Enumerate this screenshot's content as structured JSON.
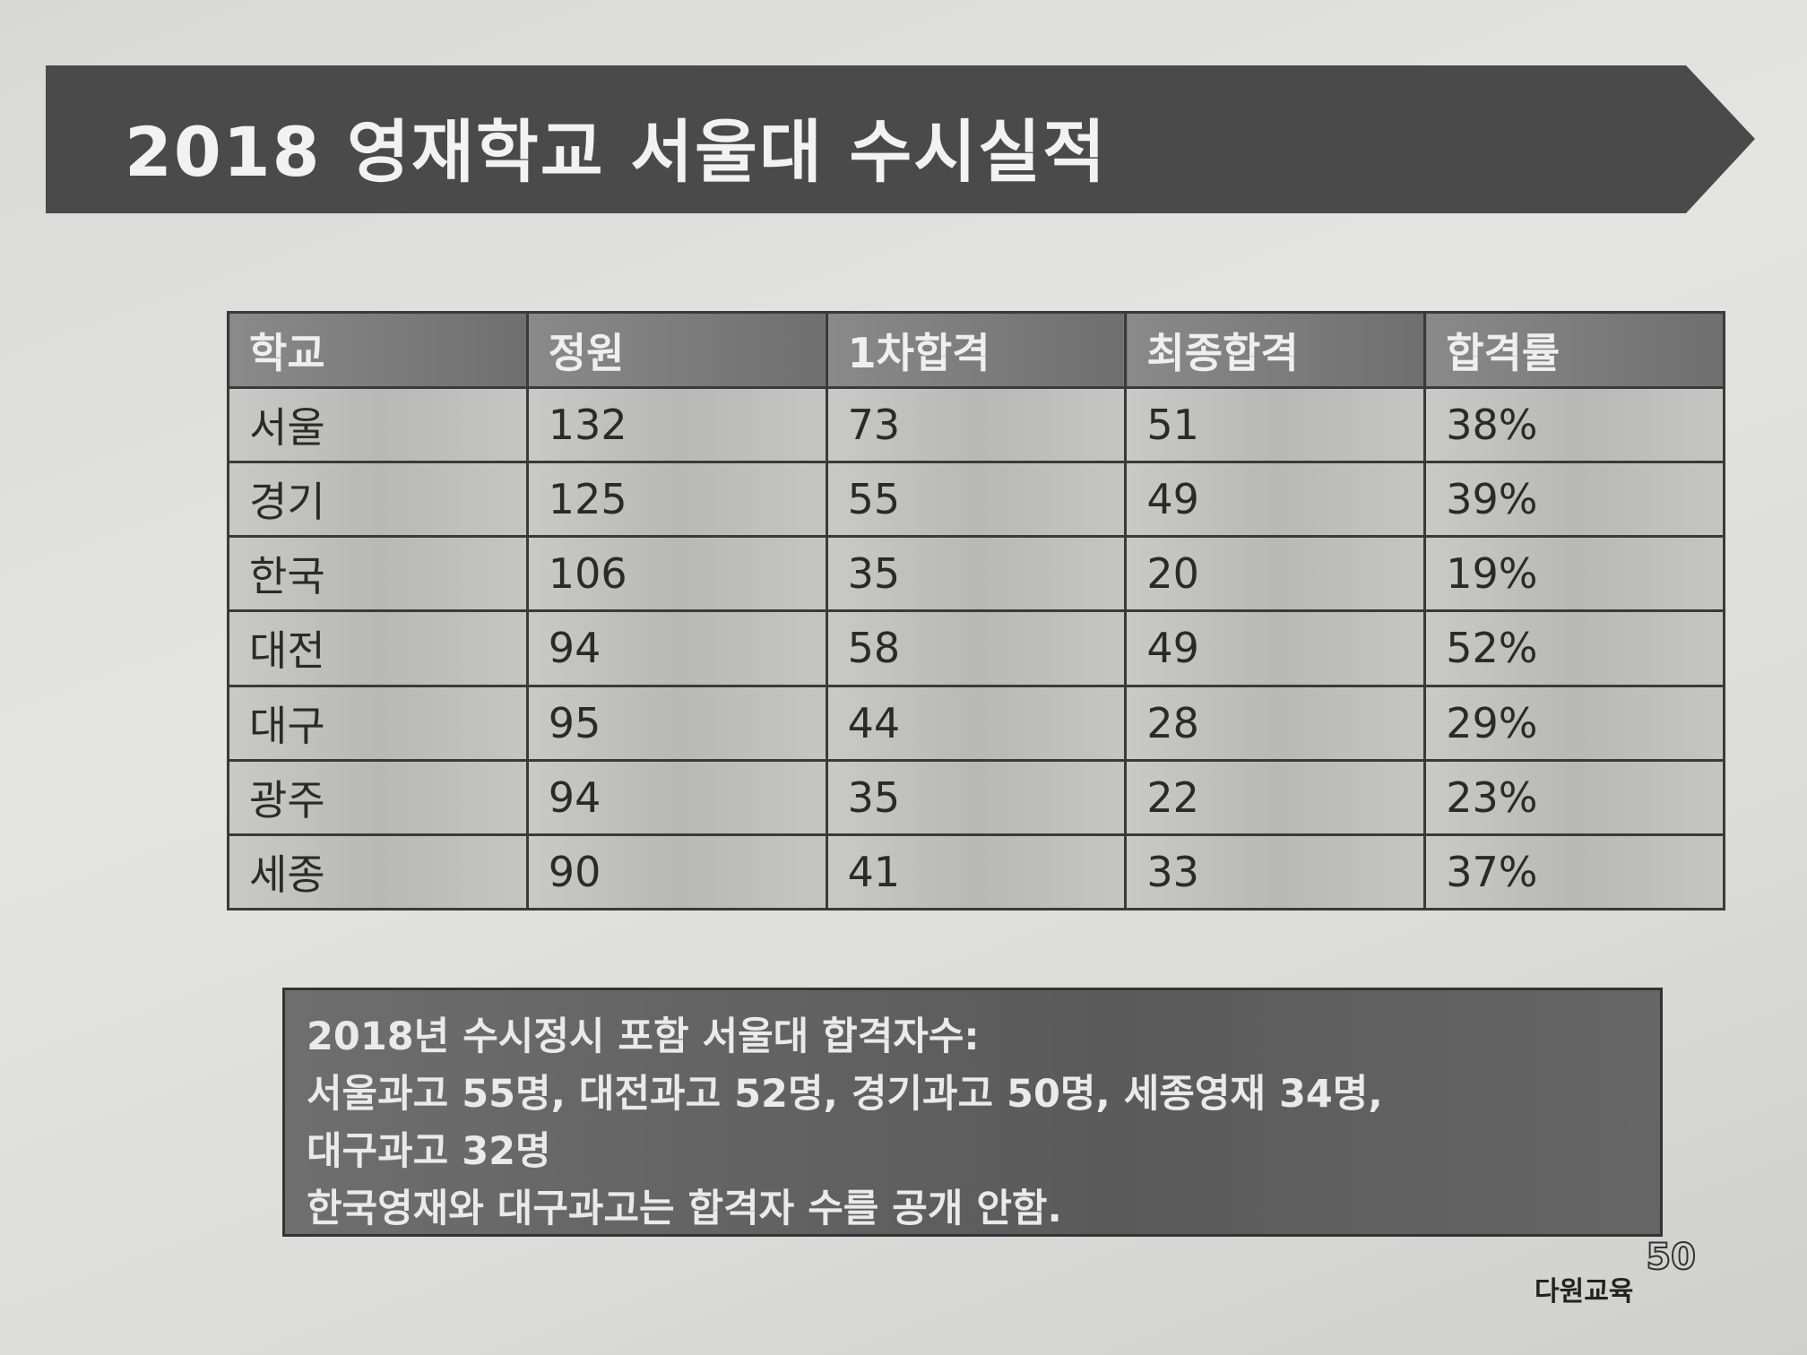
{
  "header": {
    "title": "2018 영재학교 서울대 수시실적"
  },
  "table": {
    "columns": [
      "학교",
      "정원",
      "1차합격",
      "최종합격",
      "합격률"
    ],
    "rows": [
      [
        "서울",
        132,
        73,
        51,
        "38%"
      ],
      [
        "경기",
        125,
        55,
        49,
        "39%"
      ],
      [
        "한국",
        106,
        35,
        20,
        "19%"
      ],
      [
        "대전",
        94,
        58,
        49,
        "52%"
      ],
      [
        "대구",
        95,
        44,
        28,
        "29%"
      ],
      [
        "광주",
        94,
        35,
        22,
        "23%"
      ],
      [
        "세종",
        90,
        41,
        33,
        "37%"
      ]
    ]
  },
  "note": {
    "lines": [
      "2018년 수시정시 포함 서울대 합격자수:",
      "서울과고 55명, 대전과고 52명, 경기과고 50명, 세종영재 34명,",
      "대구과고 32명",
      "한국영재와 대구과고는 합격자 수를 공개 안함."
    ]
  },
  "logo": {
    "text": "다원교육",
    "mark": "50"
  }
}
